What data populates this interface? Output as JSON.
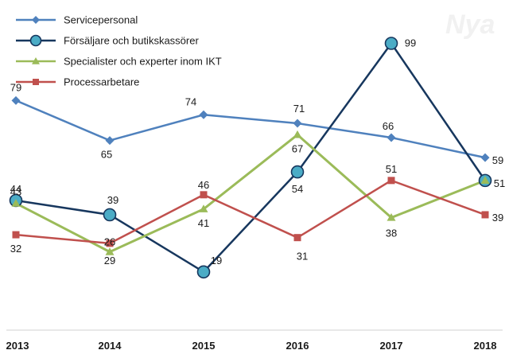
{
  "chart_data": {
    "type": "line",
    "title": "",
    "xlabel": "",
    "ylabel": "",
    "categories": [
      "2013",
      "2014",
      "2015",
      "2016",
      "2017",
      "2018"
    ],
    "ylim": [
      0,
      110
    ],
    "grid": false,
    "legend_position": "top-left",
    "watermark": "Nya",
    "series": [
      {
        "name": "Servicepersonal",
        "values": [
          79,
          65,
          74,
          71,
          66,
          59
        ],
        "color": "#4f81bd",
        "marker": "diamond"
      },
      {
        "name": "Försäljare och butikskassörer",
        "values": [
          44,
          39,
          19,
          54,
          99,
          51
        ],
        "color": "#17375e",
        "marker": "circle",
        "marker_fill": "#4bacc6"
      },
      {
        "name": "Specialister och experter inom IKT",
        "values": [
          43,
          26,
          41,
          67,
          38,
          51
        ],
        "color": "#9bbb59",
        "marker": "triangle"
      },
      {
        "name": "Processarbetare",
        "values": [
          32,
          29,
          46,
          31,
          51,
          39
        ],
        "color": "#c0504d",
        "marker": "square"
      }
    ]
  }
}
